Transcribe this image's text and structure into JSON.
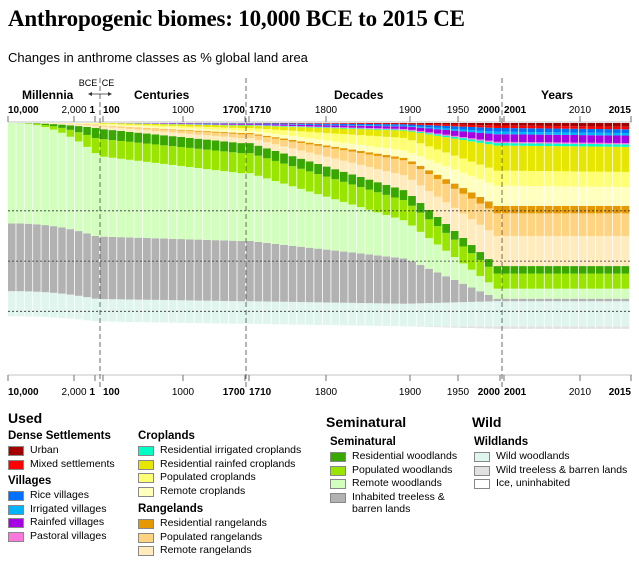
{
  "title": "Anthropogenic biomes: 10,000 BCE to 2015 CE",
  "subtitle": "Changes in anthrome classes as % global land area",
  "chart_data": {
    "type": "stacked-bar",
    "periods": [
      {
        "name": "Millennia",
        "top_ticks": [
          "10,000",
          "2,000",
          "1"
        ],
        "bottom_ticks": [
          "10,000",
          "2,000",
          "1"
        ]
      },
      {
        "name": "Centuries",
        "top_ticks": [
          "100",
          "1000",
          "1700"
        ],
        "bottom_ticks": [
          "100",
          "1000",
          "1700"
        ]
      },
      {
        "name": "Decades",
        "top_ticks": [
          "1710",
          "1800",
          "1900",
          "1950",
          "2000"
        ],
        "bottom_ticks": [
          "1710",
          "1800",
          "1900",
          "1950",
          "2000"
        ]
      },
      {
        "name": "Years",
        "top_ticks": [
          "2001",
          "2010",
          "2015"
        ],
        "bottom_ticks": [
          "2001",
          "2010",
          "2015"
        ]
      }
    ],
    "era_markers": [
      "BCE",
      "CE"
    ],
    "units": "% global land area",
    "stack_order_bottom_to_top": [
      "Ice, uninhabited",
      "Wild treeless & barren lands",
      "Wild woodlands",
      "Inhabited treeless & barren lands",
      "Remote woodlands",
      "Populated woodlands",
      "Residential woodlands",
      "Remote rangelands",
      "Populated rangelands",
      "Residential rangelands",
      "Remote croplands",
      "Populated croplands",
      "Residential rainfed croplands",
      "Residential irrigated croplands",
      "Pastoral villages",
      "Rainfed villages",
      "Irrigated villages",
      "Rice villages",
      "Mixed settlements",
      "Urban"
    ],
    "keyframes": [
      {
        "label": "10,000 BCE",
        "values": {
          "Ice, uninhabited": 23,
          "Wild treeless & barren lands": 0,
          "Wild woodlands": 10,
          "Inhabited treeless & barren lands": 27,
          "Remote woodlands": 40,
          "Populated woodlands": 0,
          "Residential woodlands": 0,
          "Remote rangelands": 0,
          "Populated rangelands": 0,
          "Residential rangelands": 0,
          "Remote croplands": 0,
          "Populated croplands": 0,
          "Residential rainfed croplands": 0,
          "Residential irrigated croplands": 0,
          "Pastoral villages": 0,
          "Rainfed villages": 0,
          "Irrigated villages": 0,
          "Rice villages": 0,
          "Mixed settlements": 0,
          "Urban": 0
        }
      },
      {
        "label": "1 CE",
        "values": {
          "Ice, uninhabited": 21,
          "Wild treeless & barren lands": 0,
          "Wild woodlands": 9,
          "Inhabited treeless & barren lands": 25,
          "Remote woodlands": 33,
          "Populated woodlands": 6,
          "Residential woodlands": 4,
          "Remote rangelands": 1,
          "Populated rangelands": 0.5,
          "Residential rangelands": 0,
          "Remote croplands": 0.3,
          "Populated croplands": 0.2,
          "Residential rainfed croplands": 0,
          "Residential irrigated croplands": 0,
          "Pastoral villages": 0,
          "Rainfed villages": 0,
          "Irrigated villages": 0,
          "Rice villages": 0,
          "Mixed settlements": 0,
          "Urban": 0
        }
      },
      {
        "label": "100 CE",
        "values": {
          "Ice, uninhabited": 21,
          "Wild treeless & barren lands": 0,
          "Wild woodlands": 9,
          "Inhabited treeless & barren lands": 25,
          "Remote woodlands": 32,
          "Populated woodlands": 7,
          "Residential woodlands": 4,
          "Remote rangelands": 1,
          "Populated rangelands": 0.5,
          "Residential rangelands": 0,
          "Remote croplands": 0.3,
          "Populated croplands": 0.4,
          "Residential rainfed croplands": 0.3,
          "Residential irrigated croplands": 0,
          "Pastoral villages": 0,
          "Rainfed villages": 0,
          "Irrigated villages": 0,
          "Rice villages": 0,
          "Mixed settlements": 0,
          "Urban": 0
        }
      },
      {
        "label": "1700",
        "values": {
          "Ice, uninhabited": 20,
          "Wild treeless & barren lands": 0,
          "Wild woodlands": 9,
          "Inhabited treeless & barren lands": 24,
          "Remote woodlands": 27,
          "Populated woodlands": 8,
          "Residential woodlands": 4,
          "Remote rangelands": 2,
          "Populated rangelands": 1.5,
          "Residential rangelands": 0.5,
          "Remote croplands": 1,
          "Populated croplands": 1,
          "Residential rainfed croplands": 1,
          "Residential irrigated croplands": 0.2,
          "Pastoral villages": 0.1,
          "Rainfed villages": 0.3,
          "Irrigated villages": 0.1,
          "Rice villages": 0.2,
          "Mixed settlements": 0.1,
          "Urban": 0
        }
      },
      {
        "label": "1900",
        "values": {
          "Ice, uninhabited": 19,
          "Wild treeless & barren lands": 0,
          "Wild woodlands": 9,
          "Inhabited treeless & barren lands": 18,
          "Remote woodlands": 15,
          "Populated woodlands": 8,
          "Residential woodlands": 4,
          "Remote rangelands": 6,
          "Populated rangelands": 6,
          "Residential rangelands": 1,
          "Remote croplands": 3,
          "Populated croplands": 5,
          "Residential rainfed croplands": 3,
          "Residential irrigated croplands": 0.3,
          "Pastoral villages": 0.3,
          "Rainfed villages": 1,
          "Irrigated villages": 0.3,
          "Rice villages": 0.6,
          "Mixed settlements": 0.3,
          "Urban": 0.2
        }
      },
      {
        "label": "2000",
        "values": {
          "Ice, uninhabited": 18,
          "Wild treeless & barren lands": 1,
          "Wild woodlands": 10,
          "Inhabited treeless & barren lands": 1,
          "Remote woodlands": 4,
          "Populated woodlands": 6,
          "Residential woodlands": 3,
          "Remote rangelands": 12,
          "Populated rangelands": 9,
          "Residential rangelands": 3,
          "Remote croplands": 8,
          "Populated croplands": 6,
          "Residential rainfed croplands": 10,
          "Residential irrigated croplands": 1,
          "Pastoral villages": 0.5,
          "Rainfed villages": 3,
          "Irrigated villages": 1,
          "Rice villages": 1.5,
          "Mixed settlements": 1,
          "Urban": 1
        }
      },
      {
        "label": "2015",
        "values": {
          "Ice, uninhabited": 18,
          "Wild treeless & barren lands": 1,
          "Wild woodlands": 10,
          "Inhabited treeless & barren lands": 1,
          "Remote woodlands": 4,
          "Populated woodlands": 6,
          "Residential woodlands": 3,
          "Remote rangelands": 12,
          "Populated rangelands": 9,
          "Residential rangelands": 3,
          "Remote croplands": 7.5,
          "Populated croplands": 6,
          "Residential rainfed croplands": 10,
          "Residential irrigated croplands": 1,
          "Pastoral villages": 0.5,
          "Rainfed villages": 3,
          "Irrigated villages": 1,
          "Rice villages": 1.5,
          "Mixed settlements": 1,
          "Urban": 1.5
        }
      }
    ],
    "reference_lines_pct": [
      25,
      45,
      65
    ],
    "colors": {
      "Urban": "#a50000",
      "Mixed settlements": "#ff0000",
      "Rice villages": "#0070ff",
      "Irrigated villages": "#00b4ff",
      "Rainfed villages": "#a500e6",
      "Pastoral villages": "#ff78dc",
      "Residential irrigated croplands": "#00ffc4",
      "Residential rainfed croplands": "#e6e600",
      "Populated croplands": "#ffff73",
      "Remote croplands": "#ffffbe",
      "Residential rangelands": "#e69800",
      "Populated rangelands": "#ffd37f",
      "Remote rangelands": "#ffebbe",
      "Residential woodlands": "#38a800",
      "Populated woodlands": "#98e600",
      "Remote woodlands": "#d3ffbe",
      "Inhabited treeless & barren lands": "#b2b2b2",
      "Wild woodlands": "#dff5ee",
      "Wild treeless & barren lands": "#e1e1e1",
      "Ice, uninhabited": "#ffffff"
    }
  },
  "legend": {
    "used_title": "Used",
    "seminatural_title": "Seminatural",
    "wild_title": "Wild",
    "groups": [
      {
        "title": "Dense Settlements",
        "items": [
          "Urban",
          "Mixed settlements"
        ]
      },
      {
        "title": "Villages",
        "items": [
          "Rice villages",
          "Irrigated villages",
          "Rainfed villages",
          "Pastoral villages"
        ]
      },
      {
        "title": "Croplands",
        "items": [
          "Residential irrigated croplands",
          "Residential rainfed croplands",
          "Populated croplands",
          "Remote croplands"
        ]
      },
      {
        "title": "Rangelands",
        "items": [
          "Residential rangelands",
          "Populated rangelands",
          "Remote rangelands"
        ]
      },
      {
        "title": "Seminatural",
        "items": [
          "Residential woodlands",
          "Populated woodlands",
          "Remote woodlands",
          "Inhabited treeless &\nbarren lands"
        ]
      },
      {
        "title": "Wildlands",
        "items": [
          "Wild woodlands",
          "Wild treeless & barren lands",
          "Ice, uninhabited"
        ]
      }
    ]
  }
}
